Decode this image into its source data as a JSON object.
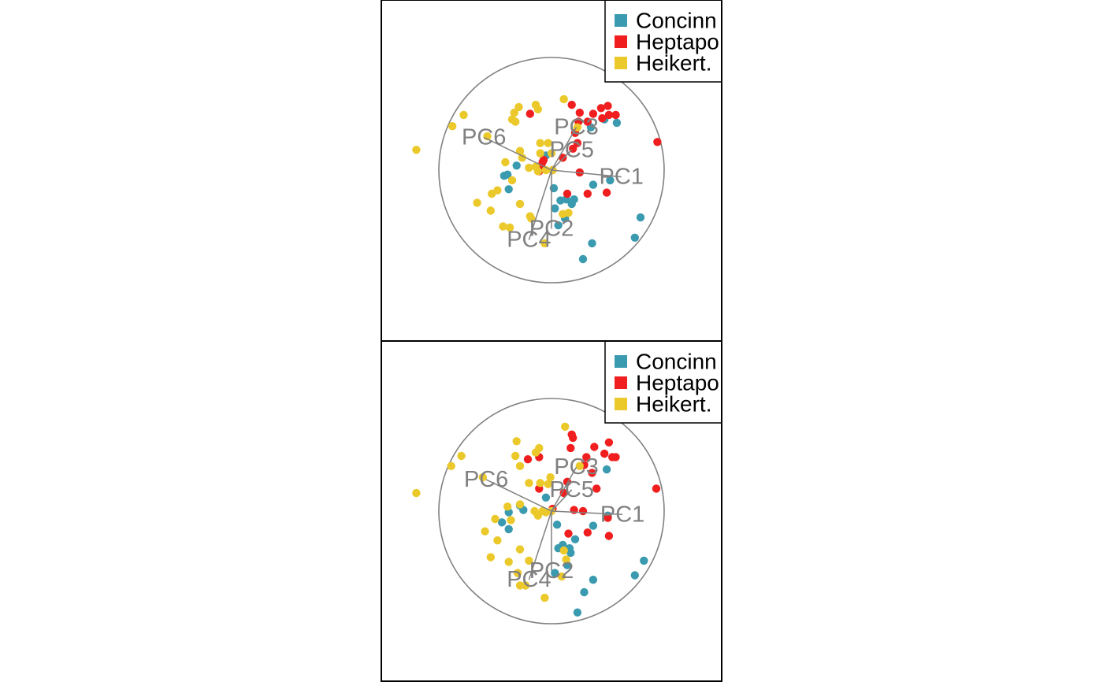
{
  "chart_data": [
    {
      "type": "scatter",
      "title": "",
      "xlabel": "",
      "ylabel": "",
      "grid": false,
      "legend_position": "top-right",
      "legend": [
        {
          "label": "Concinn",
          "color": "#3a9aaf"
        },
        {
          "label": "Heptapo",
          "color": "#f01e1e"
        },
        {
          "label": "Heikert.",
          "color": "#ebc92a"
        }
      ],
      "loadings": [
        {
          "label": "PC1",
          "x": 0.62,
          "y": -0.06
        },
        {
          "label": "PC2",
          "x": 0.0,
          "y": -0.52
        },
        {
          "label": "PC3",
          "x": 0.22,
          "y": 0.38
        },
        {
          "label": "PC4",
          "x": -0.2,
          "y": -0.62
        },
        {
          "label": "PC5",
          "x": 0.18,
          "y": 0.18
        },
        {
          "label": "PC6",
          "x": -0.6,
          "y": 0.29
        }
      ],
      "series": [
        {
          "name": "Concinn",
          "color": "#3a9aaf",
          "points": [
            [
              -0.42,
              -0.05
            ],
            [
              -0.31,
              0.04
            ],
            [
              -0.39,
              -0.04
            ],
            [
              -0.38,
              -0.17
            ],
            [
              -0.05,
              0.13
            ],
            [
              0.02,
              -0.16
            ],
            [
              0.03,
              -0.34
            ],
            [
              0.08,
              -0.27
            ],
            [
              0.12,
              -0.43
            ],
            [
              0.13,
              -0.26
            ],
            [
              0.2,
              -0.26
            ],
            [
              0.18,
              -0.3
            ],
            [
              0.06,
              -0.49
            ],
            [
              0.36,
              -0.65
            ],
            [
              0.28,
              -0.79
            ],
            [
              0.37,
              -0.13
            ],
            [
              0.52,
              -0.09
            ],
            [
              0.79,
              -0.42
            ],
            [
              0.74,
              -0.6
            ],
            [
              0.47,
              0.45
            ],
            [
              0.35,
              0.38
            ],
            [
              0.58,
              0.42
            ]
          ]
        },
        {
          "name": "Heptapo",
          "color": "#f01e1e",
          "points": [
            [
              -0.11,
              -0.01
            ],
            [
              -0.09,
              0.03
            ],
            [
              -0.08,
              0.07
            ],
            [
              0.01,
              0.0
            ],
            [
              -0.07,
              0.09
            ],
            [
              0.1,
              0.11
            ],
            [
              0.14,
              -0.21
            ],
            [
              0.25,
              -0.02
            ],
            [
              0.19,
              0.19
            ],
            [
              0.21,
              0.33
            ],
            [
              0.23,
              0.24
            ],
            [
              0.24,
              0.43
            ],
            [
              0.18,
              0.58
            ],
            [
              0.32,
              0.43
            ],
            [
              0.37,
              0.5
            ],
            [
              0.45,
              0.46
            ],
            [
              0.51,
              0.49
            ],
            [
              0.57,
              0.49
            ],
            [
              0.44,
              0.55
            ],
            [
              0.25,
              0.51
            ],
            [
              0.5,
              0.57
            ],
            [
              -0.19,
              0.5
            ],
            [
              0.32,
              -0.21
            ],
            [
              0.49,
              -0.2
            ],
            [
              0.94,
              0.25
            ]
          ]
        },
        {
          "name": "Heikert.",
          "color": "#ebc92a",
          "points": [
            [
              -1.2,
              0.18
            ],
            [
              -0.88,
              0.39
            ],
            [
              -0.78,
              0.49
            ],
            [
              -0.57,
              0.3
            ],
            [
              -0.41,
              0.07
            ],
            [
              -0.35,
              -0.09
            ],
            [
              -0.53,
              -0.21
            ],
            [
              -0.48,
              -0.18
            ],
            [
              -0.66,
              -0.29
            ],
            [
              -0.54,
              -0.36
            ],
            [
              -0.43,
              -0.5
            ],
            [
              -0.37,
              -0.51
            ],
            [
              -0.28,
              -0.3
            ],
            [
              -0.19,
              -0.41
            ],
            [
              -0.18,
              -0.43
            ],
            [
              -0.06,
              -0.65
            ],
            [
              0.1,
              -0.39
            ],
            [
              0.15,
              -0.38
            ],
            [
              0.01,
              0.0
            ],
            [
              -0.2,
              0.02
            ],
            [
              -0.26,
              0.11
            ],
            [
              -0.28,
              0.17
            ],
            [
              -0.1,
              0.15
            ],
            [
              -0.1,
              0.24
            ],
            [
              -0.03,
              0.24
            ],
            [
              -0.35,
              0.45
            ],
            [
              -0.32,
              0.43
            ],
            [
              -0.33,
              0.51
            ],
            [
              -0.29,
              0.56
            ],
            [
              -0.12,
              0.54
            ],
            [
              -0.14,
              0.58
            ],
            [
              0.11,
              0.63
            ],
            [
              0.23,
              0.38
            ],
            [
              -0.14,
              0.03
            ],
            [
              -0.12,
              -0.01
            ],
            [
              -0.05,
              0.0
            ],
            [
              0.0,
              0.15
            ]
          ]
        }
      ]
    },
    {
      "type": "scatter",
      "title": "",
      "xlabel": "",
      "ylabel": "",
      "grid": false,
      "legend_position": "top-right",
      "legend": [
        {
          "label": "Concinn",
          "color": "#3a9aaf"
        },
        {
          "label": "Heptapo",
          "color": "#f01e1e"
        },
        {
          "label": "Heikert.",
          "color": "#ebc92a"
        }
      ],
      "loadings": [
        {
          "label": "PC1",
          "x": 0.63,
          "y": -0.03
        },
        {
          "label": "PC2",
          "x": 0.0,
          "y": -0.53
        },
        {
          "label": "PC3",
          "x": 0.22,
          "y": 0.39
        },
        {
          "label": "PC4",
          "x": -0.2,
          "y": -0.61
        },
        {
          "label": "PC5",
          "x": 0.18,
          "y": 0.19
        },
        {
          "label": "PC6",
          "x": -0.58,
          "y": 0.28
        }
      ],
      "series": [
        {
          "name": "Concinn",
          "color": "#3a9aaf",
          "points": [
            [
              -0.44,
              -0.1
            ],
            [
              -0.38,
              -0.01
            ],
            [
              -0.38,
              -0.16
            ],
            [
              -0.28,
              0.05
            ],
            [
              -0.25,
              0.01
            ],
            [
              -0.05,
              0.12
            ],
            [
              0.05,
              -0.12
            ],
            [
              0.06,
              -0.33
            ],
            [
              0.1,
              -0.3
            ],
            [
              0.17,
              -0.37
            ],
            [
              0.16,
              -0.33
            ],
            [
              0.14,
              -0.48
            ],
            [
              0.03,
              -0.55
            ],
            [
              0.37,
              -0.61
            ],
            [
              0.29,
              -0.72
            ],
            [
              0.23,
              -0.9
            ],
            [
              0.37,
              -0.13
            ],
            [
              0.5,
              -0.04
            ],
            [
              0.82,
              -0.44
            ],
            [
              0.74,
              -0.57
            ],
            [
              0.49,
              0.37
            ],
            [
              0.21,
              -0.25
            ]
          ]
        },
        {
          "name": "Heptapo",
          "color": "#f01e1e",
          "points": [
            [
              -0.21,
              0.46
            ],
            [
              -0.11,
              0.48
            ],
            [
              -0.11,
              0.2
            ],
            [
              0.17,
              0.56
            ],
            [
              0.19,
              0.65
            ],
            [
              0.18,
              0.68
            ],
            [
              0.29,
              0.41
            ],
            [
              0.31,
              0.48
            ],
            [
              0.36,
              0.34
            ],
            [
              0.38,
              0.57
            ],
            [
              0.47,
              0.51
            ],
            [
              0.51,
              0.61
            ],
            [
              0.54,
              0.48
            ],
            [
              0.57,
              0.48
            ],
            [
              0.4,
              0.2
            ],
            [
              0.28,
              0.0
            ],
            [
              0.5,
              -0.06
            ],
            [
              0.15,
              -0.2
            ],
            [
              0.32,
              -0.19
            ],
            [
              0.51,
              -0.22
            ],
            [
              0.01,
              0.02
            ],
            [
              0.93,
              0.2
            ],
            [
              0.14,
              0.26
            ],
            [
              0.2,
              0.01
            ],
            [
              0.11,
              0.16
            ]
          ]
        },
        {
          "name": "Heikert.",
          "color": "#ebc92a",
          "points": [
            [
              -1.2,
              0.16
            ],
            [
              -0.89,
              0.4
            ],
            [
              -0.8,
              0.49
            ],
            [
              -0.61,
              0.3
            ],
            [
              -0.39,
              0.04
            ],
            [
              -0.36,
              -0.08
            ],
            [
              -0.5,
              -0.07
            ],
            [
              -0.48,
              -0.26
            ],
            [
              -0.54,
              -0.41
            ],
            [
              -0.59,
              -0.18
            ],
            [
              -0.38,
              -0.45
            ],
            [
              -0.3,
              -0.55
            ],
            [
              -0.28,
              -0.66
            ],
            [
              -0.23,
              -0.66
            ],
            [
              -0.28,
              -0.34
            ],
            [
              -0.2,
              -0.44
            ],
            [
              -0.06,
              -0.77
            ],
            [
              0.11,
              -0.35
            ],
            [
              0.13,
              -0.43
            ],
            [
              0.09,
              -0.58
            ],
            [
              -0.03,
              0.24
            ],
            [
              -0.1,
              0.25
            ],
            [
              -0.2,
              0.25
            ],
            [
              -0.15,
              0.0
            ],
            [
              -0.12,
              -0.04
            ],
            [
              -0.05,
              -0.01
            ],
            [
              -0.32,
              0.49
            ],
            [
              -0.31,
              0.62
            ],
            [
              -0.28,
              0.4
            ],
            [
              -0.14,
              0.52
            ],
            [
              -0.11,
              0.56
            ],
            [
              -0.28,
              0.06
            ],
            [
              0.12,
              0.75
            ],
            [
              0.25,
              0.4
            ],
            [
              0.0,
              0.0
            ],
            [
              -0.01,
              0.3
            ],
            [
              -0.08,
              0.0
            ]
          ]
        }
      ]
    }
  ]
}
